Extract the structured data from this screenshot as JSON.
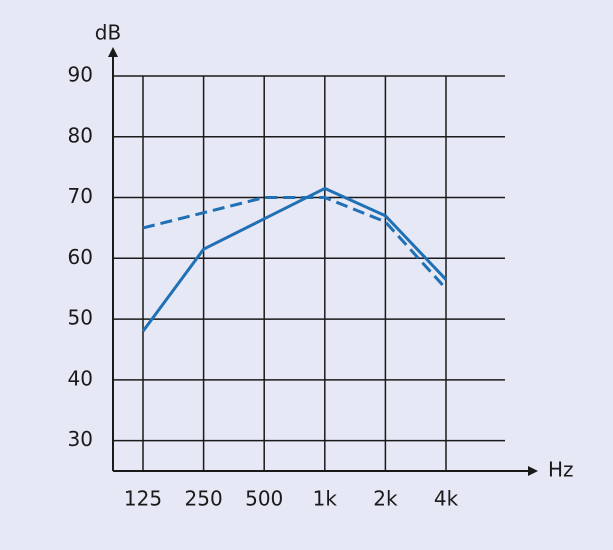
{
  "chart_data": {
    "type": "line",
    "y_label": "dB",
    "x_label": "Hz",
    "categories": [
      "125",
      "250",
      "500",
      "1k",
      "2k",
      "4k"
    ],
    "series": [
      {
        "color": "#1f70b5",
        "style": "solid",
        "values": [
          48,
          61.5,
          66.5,
          71.5,
          67,
          56.5
        ]
      },
      {
        "color": "#1f70b5",
        "style": "dashed",
        "values": [
          65,
          67.5,
          70,
          70,
          66,
          55
        ]
      }
    ],
    "ylim": [
      25,
      90
    ],
    "yticks": [
      30,
      40,
      50,
      60,
      70,
      80,
      90
    ],
    "grid": true
  }
}
